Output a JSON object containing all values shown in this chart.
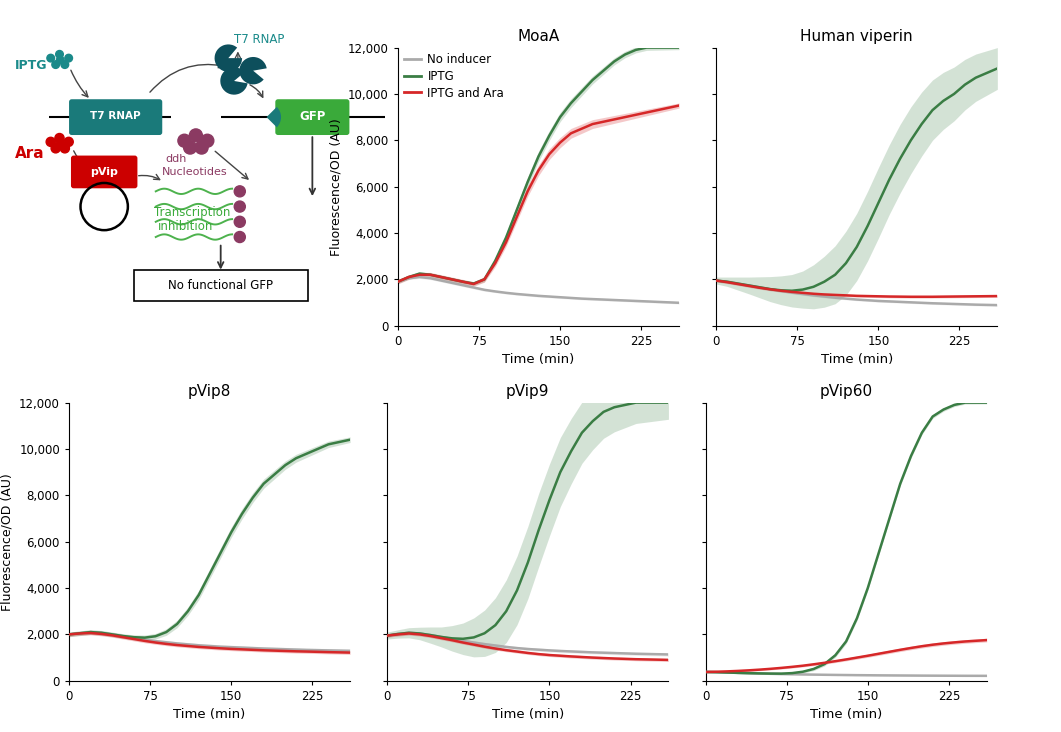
{
  "panel_titles": [
    "MoaA",
    "Human viperin",
    "pVip8",
    "pVip9",
    "pVip60"
  ],
  "xlabel": "Time (min)",
  "ylabel": "Fluorescence/OD (AU)",
  "ylim": [
    0,
    12000
  ],
  "yticks": [
    0,
    2000,
    4000,
    6000,
    8000,
    10000,
    12000
  ],
  "xticks": [
    0,
    75,
    150,
    225
  ],
  "time": [
    0,
    10,
    20,
    30,
    40,
    50,
    60,
    70,
    80,
    90,
    100,
    110,
    120,
    130,
    140,
    150,
    160,
    170,
    180,
    190,
    200,
    210,
    220,
    230,
    240,
    250,
    260
  ],
  "colors": {
    "gray": "#aaaaaa",
    "green": "#3a7d44",
    "red": "#d62728"
  },
  "green_fill_alpha": 0.22,
  "red_fill_alpha": 0.25,
  "gray_fill_alpha": 0.2,
  "line_width": 1.8,
  "MoaA": {
    "gray_mean": [
      1900,
      2050,
      2100,
      2050,
      1950,
      1850,
      1750,
      1650,
      1550,
      1480,
      1420,
      1370,
      1330,
      1290,
      1260,
      1230,
      1200,
      1170,
      1150,
      1130,
      1110,
      1090,
      1070,
      1050,
      1030,
      1010,
      990
    ],
    "gray_std": [
      60,
      60,
      60,
      60,
      60,
      60,
      60,
      60,
      60,
      50,
      50,
      50,
      50,
      50,
      50,
      50,
      50,
      50,
      50,
      50,
      50,
      50,
      50,
      50,
      50,
      50,
      50
    ],
    "green_mean": [
      1900,
      2100,
      2250,
      2200,
      2100,
      2000,
      1900,
      1820,
      2000,
      2800,
      3800,
      5000,
      6200,
      7300,
      8200,
      9000,
      9600,
      10100,
      10600,
      11000,
      11400,
      11700,
      11900,
      12000,
      12000,
      12000,
      12000
    ],
    "green_std": [
      80,
      80,
      80,
      80,
      80,
      80,
      80,
      80,
      100,
      150,
      180,
      200,
      220,
      220,
      210,
      200,
      190,
      180,
      170,
      160,
      150,
      140,
      130,
      120,
      110,
      100,
      90
    ],
    "red_mean": [
      1900,
      2100,
      2200,
      2200,
      2100,
      2000,
      1900,
      1800,
      2000,
      2700,
      3600,
      4700,
      5800,
      6700,
      7400,
      7900,
      8300,
      8500,
      8700,
      8800,
      8900,
      9000,
      9100,
      9200,
      9300,
      9400,
      9500
    ],
    "red_std": [
      100,
      100,
      100,
      100,
      100,
      100,
      100,
      100,
      120,
      150,
      180,
      200,
      220,
      230,
      230,
      220,
      210,
      200,
      190,
      180,
      170,
      160,
      150,
      140,
      130,
      120,
      110
    ]
  },
  "Human viperin": {
    "gray_mean": [
      1950,
      1900,
      1820,
      1740,
      1660,
      1580,
      1500,
      1430,
      1370,
      1310,
      1260,
      1210,
      1170,
      1130,
      1100,
      1070,
      1050,
      1030,
      1010,
      990,
      970,
      955,
      940,
      925,
      910,
      900,
      890
    ],
    "gray_std": [
      60,
      60,
      60,
      60,
      60,
      60,
      60,
      55,
      55,
      55,
      55,
      50,
      50,
      50,
      50,
      50,
      50,
      50,
      50,
      50,
      50,
      50,
      50,
      50,
      50,
      50,
      50
    ],
    "green_mean": [
      1950,
      1900,
      1820,
      1740,
      1660,
      1580,
      1530,
      1510,
      1560,
      1680,
      1900,
      2200,
      2700,
      3400,
      4300,
      5300,
      6300,
      7200,
      8000,
      8700,
      9300,
      9700,
      10000,
      10400,
      10700,
      10900,
      11100
    ],
    "green_std": [
      150,
      200,
      280,
      360,
      450,
      540,
      620,
      700,
      800,
      950,
      1100,
      1250,
      1380,
      1450,
      1500,
      1520,
      1500,
      1480,
      1440,
      1380,
      1300,
      1230,
      1160,
      1090,
      1020,
      960,
      900
    ],
    "red_mean": [
      1950,
      1880,
      1800,
      1720,
      1640,
      1570,
      1510,
      1460,
      1420,
      1380,
      1350,
      1330,
      1310,
      1290,
      1280,
      1270,
      1260,
      1255,
      1250,
      1250,
      1250,
      1255,
      1260,
      1265,
      1270,
      1275,
      1280
    ],
    "red_std": [
      60,
      60,
      60,
      60,
      60,
      60,
      55,
      55,
      55,
      55,
      55,
      55,
      55,
      55,
      55,
      55,
      55,
      55,
      55,
      55,
      55,
      55,
      55,
      55,
      55,
      55,
      55
    ]
  },
  "pVip8": {
    "gray_mean": [
      2000,
      2050,
      2100,
      2060,
      2000,
      1920,
      1840,
      1770,
      1710,
      1660,
      1610,
      1570,
      1530,
      1500,
      1470,
      1450,
      1430,
      1410,
      1390,
      1375,
      1360,
      1345,
      1330,
      1320,
      1310,
      1300,
      1290
    ],
    "gray_std": [
      100,
      100,
      100,
      100,
      90,
      90,
      90,
      80,
      80,
      80,
      80,
      80,
      80,
      80,
      80,
      80,
      80,
      80,
      80,
      80,
      80,
      80,
      80,
      80,
      80,
      80,
      80
    ],
    "green_mean": [
      2000,
      2050,
      2100,
      2070,
      2000,
      1930,
      1880,
      1860,
      1920,
      2100,
      2450,
      3000,
      3700,
      4600,
      5500,
      6400,
      7200,
      7900,
      8500,
      8900,
      9300,
      9600,
      9800,
      10000,
      10200,
      10300,
      10400
    ],
    "green_std": [
      100,
      100,
      100,
      100,
      100,
      100,
      100,
      110,
      120,
      140,
      160,
      180,
      200,
      210,
      220,
      220,
      220,
      210,
      200,
      190,
      180,
      170,
      160,
      150,
      140,
      130,
      120
    ],
    "red_mean": [
      2000,
      2040,
      2060,
      2020,
      1960,
      1880,
      1800,
      1720,
      1650,
      1590,
      1540,
      1500,
      1460,
      1430,
      1400,
      1375,
      1355,
      1335,
      1315,
      1300,
      1285,
      1270,
      1260,
      1248,
      1235,
      1225,
      1215
    ],
    "red_std": [
      80,
      80,
      80,
      80,
      80,
      80,
      80,
      80,
      75,
      75,
      75,
      75,
      75,
      75,
      75,
      75,
      75,
      75,
      75,
      75,
      75,
      75,
      75,
      75,
      75,
      75,
      75
    ]
  },
  "pVip9": {
    "gray_mean": [
      1950,
      2020,
      2070,
      2040,
      1970,
      1890,
      1800,
      1720,
      1650,
      1580,
      1520,
      1460,
      1410,
      1370,
      1340,
      1310,
      1285,
      1265,
      1245,
      1225,
      1210,
      1195,
      1180,
      1165,
      1155,
      1145,
      1135
    ],
    "gray_std": [
      80,
      80,
      80,
      80,
      80,
      80,
      80,
      80,
      75,
      75,
      75,
      70,
      70,
      70,
      70,
      70,
      70,
      70,
      70,
      70,
      70,
      70,
      70,
      70,
      70,
      70,
      70
    ],
    "green_mean": [
      1950,
      2020,
      2070,
      2040,
      1970,
      1890,
      1830,
      1810,
      1870,
      2050,
      2400,
      3000,
      3900,
      5100,
      6500,
      7800,
      9000,
      9900,
      10700,
      11200,
      11600,
      11800,
      11900,
      12000,
      12000,
      12000,
      12000
    ],
    "green_std": [
      150,
      180,
      220,
      270,
      350,
      430,
      550,
      680,
      840,
      1000,
      1180,
      1350,
      1480,
      1560,
      1580,
      1550,
      1490,
      1410,
      1320,
      1230,
      1140,
      1060,
      980,
      900,
      840,
      780,
      720
    ],
    "red_mean": [
      1950,
      2000,
      2040,
      2000,
      1930,
      1840,
      1750,
      1650,
      1560,
      1470,
      1390,
      1320,
      1260,
      1200,
      1150,
      1110,
      1080,
      1050,
      1025,
      1000,
      980,
      960,
      945,
      930,
      920,
      910,
      900
    ],
    "red_std": [
      70,
      70,
      70,
      70,
      70,
      70,
      70,
      70,
      65,
      65,
      65,
      65,
      65,
      65,
      65,
      65,
      65,
      65,
      65,
      65,
      65,
      65,
      65,
      65,
      65,
      65,
      65
    ]
  },
  "pVip60": {
    "gray_mean": [
      380,
      370,
      355,
      340,
      325,
      312,
      300,
      290,
      280,
      272,
      265,
      258,
      252,
      247,
      242,
      238,
      234,
      231,
      228,
      225,
      222,
      220,
      218,
      216,
      214,
      213,
      212
    ],
    "gray_std": [
      30,
      30,
      30,
      30,
      28,
      28,
      28,
      26,
      26,
      26,
      25,
      25,
      25,
      25,
      25,
      25,
      25,
      25,
      25,
      25,
      25,
      25,
      25,
      25,
      25,
      25,
      25
    ],
    "green_mean": [
      380,
      370,
      355,
      340,
      328,
      318,
      310,
      308,
      330,
      390,
      510,
      720,
      1100,
      1700,
      2700,
      4000,
      5500,
      7000,
      8500,
      9700,
      10700,
      11400,
      11700,
      11900,
      12000,
      12000,
      12000
    ],
    "green_std": [
      30,
      30,
      30,
      30,
      30,
      30,
      35,
      40,
      50,
      60,
      70,
      80,
      90,
      95,
      100,
      100,
      100,
      98,
      95,
      90,
      85,
      80,
      75,
      70,
      65,
      60,
      55
    ],
    "red_mean": [
      380,
      390,
      405,
      425,
      450,
      480,
      515,
      555,
      600,
      650,
      710,
      775,
      845,
      920,
      1000,
      1080,
      1165,
      1250,
      1335,
      1415,
      1490,
      1555,
      1610,
      1655,
      1695,
      1725,
      1755
    ],
    "red_std": [
      40,
      40,
      40,
      40,
      42,
      44,
      46,
      48,
      50,
      52,
      55,
      58,
      60,
      62,
      65,
      67,
      70,
      72,
      74,
      75,
      76,
      77,
      78,
      78,
      79,
      79,
      80
    ]
  },
  "legend_labels": [
    "No inducer",
    "IPTG",
    "IPTG and Ara"
  ],
  "diagram": {
    "iptg_color": "#1a8a8a",
    "ara_color": "#cc0000",
    "t7rnap_box_color": "#1a7a7a",
    "gfp_box_color": "#3aaa3a",
    "t7_text_color": "#1a8a8a",
    "nucleotides_color": "#8B3A62",
    "transcription_color": "#3aaa3a",
    "pvip_box_color": "#cc0000",
    "pacman_color": "#0d4f5c"
  }
}
